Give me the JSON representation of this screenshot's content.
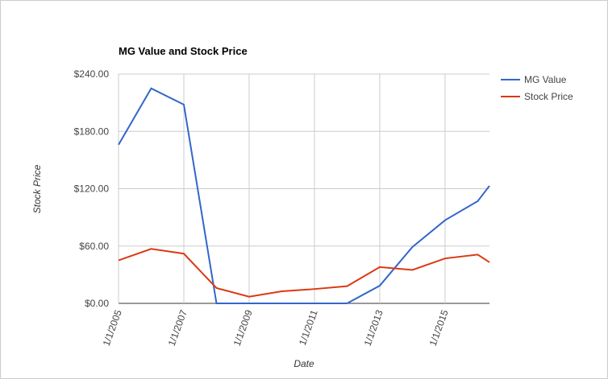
{
  "chart_data": {
    "type": "line",
    "title": "MG Value and Stock Price",
    "x_label": "Date",
    "y_label": "Stock Price",
    "x": [
      2005,
      2006,
      2007,
      2008,
      2009,
      2010,
      2011,
      2012,
      2013,
      2014,
      2015,
      2016,
      2016.36
    ],
    "xlim": [
      2005,
      2016.36
    ],
    "xticks": [
      {
        "value": 2005,
        "label": "1/1/2005"
      },
      {
        "value": 2007,
        "label": "1/1/2007"
      },
      {
        "value": 2009,
        "label": "1/1/2009"
      },
      {
        "value": 2011,
        "label": "1/1/2011"
      },
      {
        "value": 2013,
        "label": "1/1/2013"
      },
      {
        "value": 2015,
        "label": "1/1/2015"
      }
    ],
    "ylim": [
      0,
      240
    ],
    "yticks": [
      {
        "value": 0,
        "label": "$0.00"
      },
      {
        "value": 60,
        "label": "$60.00"
      },
      {
        "value": 120,
        "label": "$120.00"
      },
      {
        "value": 180,
        "label": "$180.00"
      },
      {
        "value": 240,
        "label": "$240.00"
      }
    ],
    "grid": true,
    "legend": "right",
    "series": [
      {
        "name": "MG Value",
        "color": "#3366cc",
        "values": [
          166,
          225,
          208,
          0,
          0,
          0,
          0,
          0,
          18.5,
          59,
          87,
          107,
          123
        ]
      },
      {
        "name": "Stock Price",
        "color": "#dc3912",
        "values": [
          45,
          57,
          52,
          16,
          7,
          12.6,
          15,
          18,
          38,
          35,
          47,
          51,
          43
        ]
      }
    ]
  }
}
